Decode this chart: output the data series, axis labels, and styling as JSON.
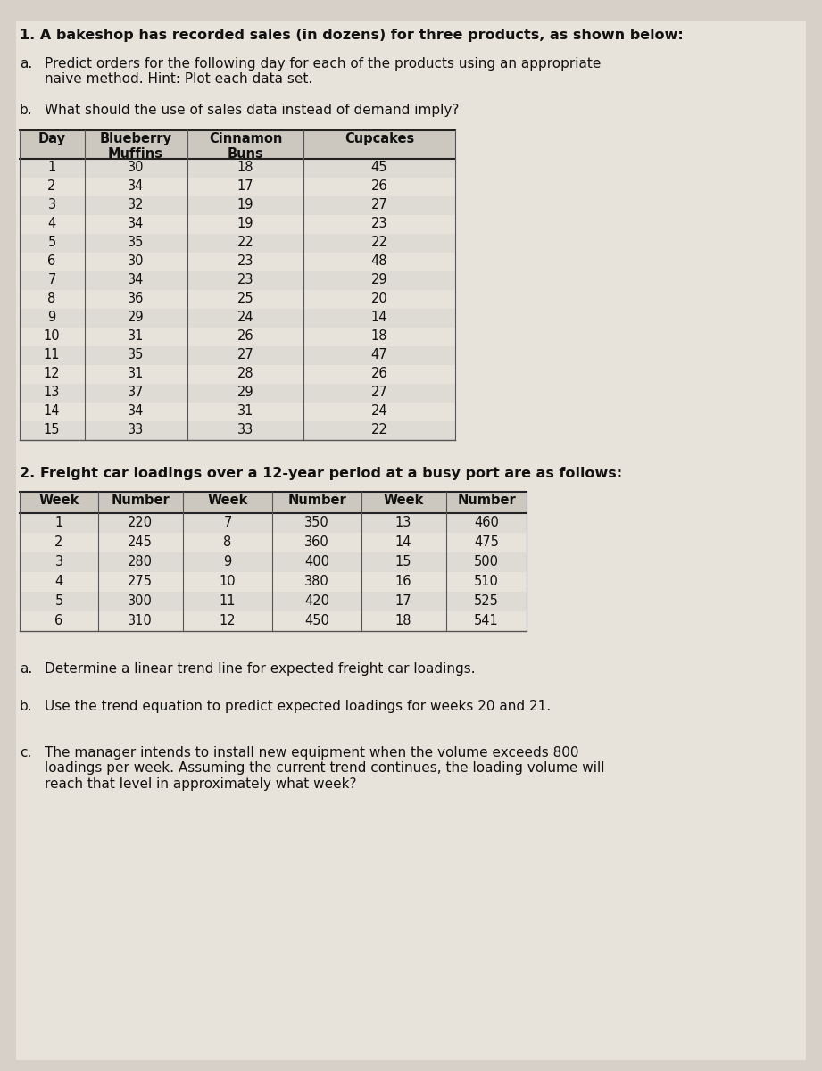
{
  "title1": "1. A bakeshop has recorded sales (in dozens) for three products, as shown below:",
  "q1a_label": "a.",
  "q1a_text": "Predict orders for the following day for each of the products using an appropriate\nnaive method. Hint: Plot each data set.",
  "q1b_label": "b.",
  "q1b_text": "What should the use of sales data instead of demand imply?",
  "table1_col_headers": [
    "Day",
    "Blueberry\nMuffins",
    "Cinnamon\nBuns",
    "Cupcakes"
  ],
  "table1_data": [
    [
      "1",
      "30",
      "18",
      "45"
    ],
    [
      "2",
      "34",
      "17",
      "26"
    ],
    [
      "3",
      "32",
      "19",
      "27"
    ],
    [
      "4",
      "34",
      "19",
      "23"
    ],
    [
      "5",
      "35",
      "22",
      "22"
    ],
    [
      "6",
      "30",
      "23",
      "48"
    ],
    [
      "7",
      "34",
      "23",
      "29"
    ],
    [
      "8",
      "36",
      "25",
      "20"
    ],
    [
      "9",
      "29",
      "24",
      "14"
    ],
    [
      "10",
      "31",
      "26",
      "18"
    ],
    [
      "11",
      "35",
      "27",
      "47"
    ],
    [
      "12",
      "31",
      "28",
      "26"
    ],
    [
      "13",
      "37",
      "29",
      "27"
    ],
    [
      "14",
      "34",
      "31",
      "24"
    ],
    [
      "15",
      "33",
      "33",
      "22"
    ]
  ],
  "title2": "2. Freight car loadings over a 12-year period at a busy port are as follows:",
  "table2_col_headers": [
    "Week",
    "Number",
    "Week",
    "Number",
    "Week",
    "Number"
  ],
  "table2_data": [
    [
      "1",
      "220",
      "7",
      "350",
      "13",
      "460"
    ],
    [
      "2",
      "245",
      "8",
      "360",
      "14",
      "475"
    ],
    [
      "3",
      "280",
      "9",
      "400",
      "15",
      "500"
    ],
    [
      "4",
      "275",
      "10",
      "380",
      "16",
      "510"
    ],
    [
      "5",
      "300",
      "11",
      "420",
      "17",
      "525"
    ],
    [
      "6",
      "310",
      "12",
      "450",
      "18",
      "541"
    ]
  ],
  "q2a_label": "a.",
  "q2a_text": "Determine a linear trend line for expected freight car loadings.",
  "q2b_label": "b.",
  "q2b_text": "Use the trend equation to predict expected loadings for weeks 20 and 21.",
  "q2c_label": "c.",
  "q2c_text": "The manager intends to install new equipment when the volume exceeds 800\nloadings per week. Assuming the current trend continues, the loading volume will\nreach that level in approximately what week?",
  "bg_color": "#d6d0c8",
  "paper_color": "#e8e3da",
  "line_color": "#555555",
  "text_color": "#111111",
  "header_line_color": "#222222"
}
